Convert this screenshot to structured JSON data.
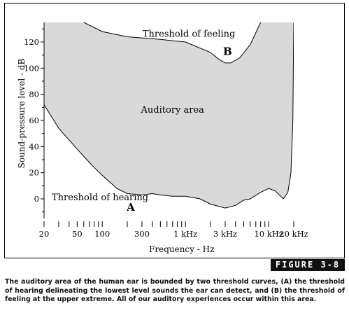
{
  "chart_data": {
    "type": "area",
    "x_scale": "log",
    "xlabel": "Frequency - Hz",
    "ylabel": "Sound-pressure level - dB",
    "xlim": [
      20,
      20000
    ],
    "ylim": [
      -15,
      135
    ],
    "x_ticks": [
      {
        "value": 20,
        "label": "20"
      },
      {
        "value": 50,
        "label": "50"
      },
      {
        "value": 100,
        "label": "100"
      },
      {
        "value": 300,
        "label": "300"
      },
      {
        "value": 1000,
        "label": "1 kHz"
      },
      {
        "value": 3000,
        "label": "3 kHz"
      },
      {
        "value": 10000,
        "label": "10 kHz"
      },
      {
        "value": 20000,
        "label": "20 kHz"
      }
    ],
    "y_ticks": [
      0,
      20,
      40,
      60,
      80,
      100,
      120
    ],
    "region_label": "Auditory area",
    "series": [
      {
        "name": "Threshold of hearing",
        "letter": "A",
        "points": [
          [
            20,
            72
          ],
          [
            30,
            54
          ],
          [
            50,
            38
          ],
          [
            80,
            24
          ],
          [
            100,
            18
          ],
          [
            150,
            8
          ],
          [
            200,
            4
          ],
          [
            300,
            3
          ],
          [
            400,
            4
          ],
          [
            500,
            3
          ],
          [
            700,
            2
          ],
          [
            1000,
            2
          ],
          [
            1500,
            0
          ],
          [
            2000,
            -4
          ],
          [
            3000,
            -7
          ],
          [
            4000,
            -5
          ],
          [
            5000,
            -1
          ],
          [
            6000,
            0
          ],
          [
            8000,
            5
          ],
          [
            10000,
            8
          ],
          [
            12000,
            6
          ],
          [
            15000,
            0
          ],
          [
            17000,
            5
          ],
          [
            18500,
            20
          ],
          [
            19500,
            60
          ],
          [
            20000,
            135
          ]
        ]
      },
      {
        "name": "Threshold of feeling",
        "letter": "B",
        "points": [
          [
            60,
            135
          ],
          [
            100,
            128
          ],
          [
            200,
            124
          ],
          [
            500,
            122
          ],
          [
            1000,
            120
          ],
          [
            2000,
            112
          ],
          [
            2500,
            107
          ],
          [
            3000,
            104
          ],
          [
            3500,
            104
          ],
          [
            4500,
            108
          ],
          [
            6000,
            118
          ],
          [
            8000,
            135
          ]
        ]
      }
    ]
  },
  "figure_label": "FIGURE 3-8",
  "caption": "The auditory area of the human ear is bounded by two threshold curves, (A) the threshold of hearing delineating the lowest level sounds the ear can detect, and (B) the threshold of feeling at the upper extreme. All of our auditory experiences occur within this area.",
  "colors": {
    "area_fill": "#d9d9d9",
    "curve": "#000000",
    "badge_bg": "#111111",
    "badge_text": "#ffffff"
  }
}
